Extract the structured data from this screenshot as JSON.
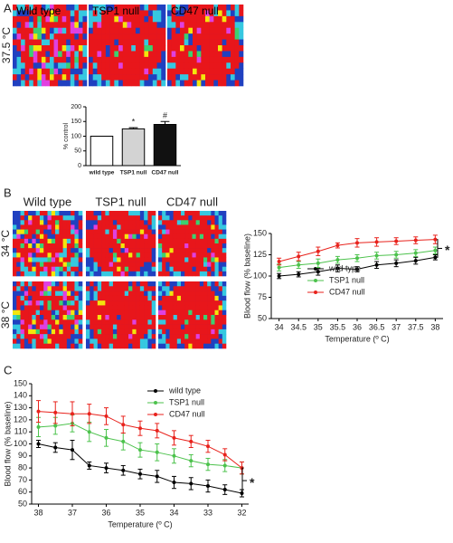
{
  "panels": [
    "A",
    "B",
    "C"
  ],
  "image_labels": {
    "a_columns": [
      "Wild type",
      "TSP1 null",
      "CD47 null"
    ],
    "a_rows": [
      "37.5 °C"
    ],
    "b_columns": [
      "Wild type",
      "TSP1 null",
      "CD47 null"
    ],
    "b_rows": [
      "34 °C",
      "38 °C"
    ]
  },
  "chart_data": [
    {
      "type": "bar",
      "ylabel": "% control",
      "categories": [
        "wild type",
        "TSP1 null",
        "CD47 null"
      ],
      "values": [
        100,
        125,
        140
      ],
      "errors": [
        0,
        4,
        10
      ],
      "colors": [
        "#ffffff",
        "#d3d3d3",
        "#111111"
      ],
      "value_annotations": [
        null,
        "*",
        "#"
      ],
      "ylim": [
        0,
        200
      ],
      "yticks": [
        0,
        50,
        100,
        150,
        200
      ]
    },
    {
      "type": "line",
      "xlabel": "Temperature (º C)",
      "ylabel": "Blood flow (% baseline)",
      "x": [
        34,
        34.5,
        35,
        35.5,
        36,
        36.5,
        37,
        37.5,
        38
      ],
      "series": [
        {
          "name": "wild type",
          "color": "#000000",
          "values": [
            100,
            102,
            105,
            109,
            108,
            113,
            115,
            118,
            122
          ],
          "errors": [
            3,
            3,
            4,
            4,
            3,
            4,
            4,
            4,
            3
          ]
        },
        {
          "name": "TSP1 null",
          "color": "#4cc24c",
          "values": [
            110,
            113,
            115,
            119,
            121,
            124,
            125,
            127,
            130
          ],
          "errors": [
            4,
            4,
            5,
            4,
            4,
            4,
            4,
            4,
            4
          ]
        },
        {
          "name": "CD47 null",
          "color": "#e8221c",
          "values": [
            117,
            123,
            129,
            136,
            139,
            140,
            141,
            142,
            143
          ],
          "errors": [
            4,
            5,
            5,
            3,
            5,
            5,
            4,
            4,
            5
          ]
        }
      ],
      "xlim": [
        33.8,
        38.2
      ],
      "xticks": [
        34,
        34.5,
        35,
        35.5,
        36,
        36.5,
        37,
        37.5,
        38
      ],
      "ylim": [
        50,
        150
      ],
      "yticks": [
        50,
        75,
        100,
        125,
        150
      ],
      "legend": "lower right",
      "annotation": "*"
    },
    {
      "type": "line",
      "xlabel": "Temperature (º C)",
      "ylabel": "Blood flow (% baseline)",
      "x": [
        38,
        37.5,
        37,
        36.5,
        36,
        35.5,
        35,
        34.5,
        34,
        33.5,
        33,
        32.5,
        32
      ],
      "series": [
        {
          "name": "wild type",
          "color": "#000000",
          "values": [
            100,
            97,
            95,
            82,
            80,
            78,
            75,
            73,
            68,
            67,
            65,
            62,
            59
          ],
          "errors": [
            3,
            4,
            8,
            3,
            4,
            4,
            4,
            5,
            5,
            5,
            5,
            4,
            3
          ]
        },
        {
          "name": "TSP1 null",
          "color": "#4cc24c",
          "values": [
            114,
            115,
            117,
            110,
            105,
            102,
            95,
            93,
            90,
            86,
            83,
            82,
            80
          ],
          "errors": [
            8,
            7,
            7,
            8,
            7,
            7,
            6,
            7,
            6,
            5,
            5,
            5,
            5
          ]
        },
        {
          "name": "CD47 null",
          "color": "#e8221c",
          "values": [
            127,
            126,
            125,
            125,
            123,
            116,
            113,
            111,
            105,
            102,
            98,
            91,
            80
          ],
          "errors": [
            9,
            9,
            10,
            8,
            7,
            7,
            6,
            6,
            6,
            5,
            5,
            5,
            5
          ]
        }
      ],
      "xlim": [
        38.2,
        31.8
      ],
      "xticks": [
        38,
        37,
        36,
        35,
        34,
        33,
        32
      ],
      "ylim": [
        50,
        150
      ],
      "yticks": [
        50,
        60,
        70,
        80,
        90,
        100,
        110,
        120,
        130,
        140,
        150
      ],
      "legend": "upper right",
      "annotation": "*"
    }
  ]
}
